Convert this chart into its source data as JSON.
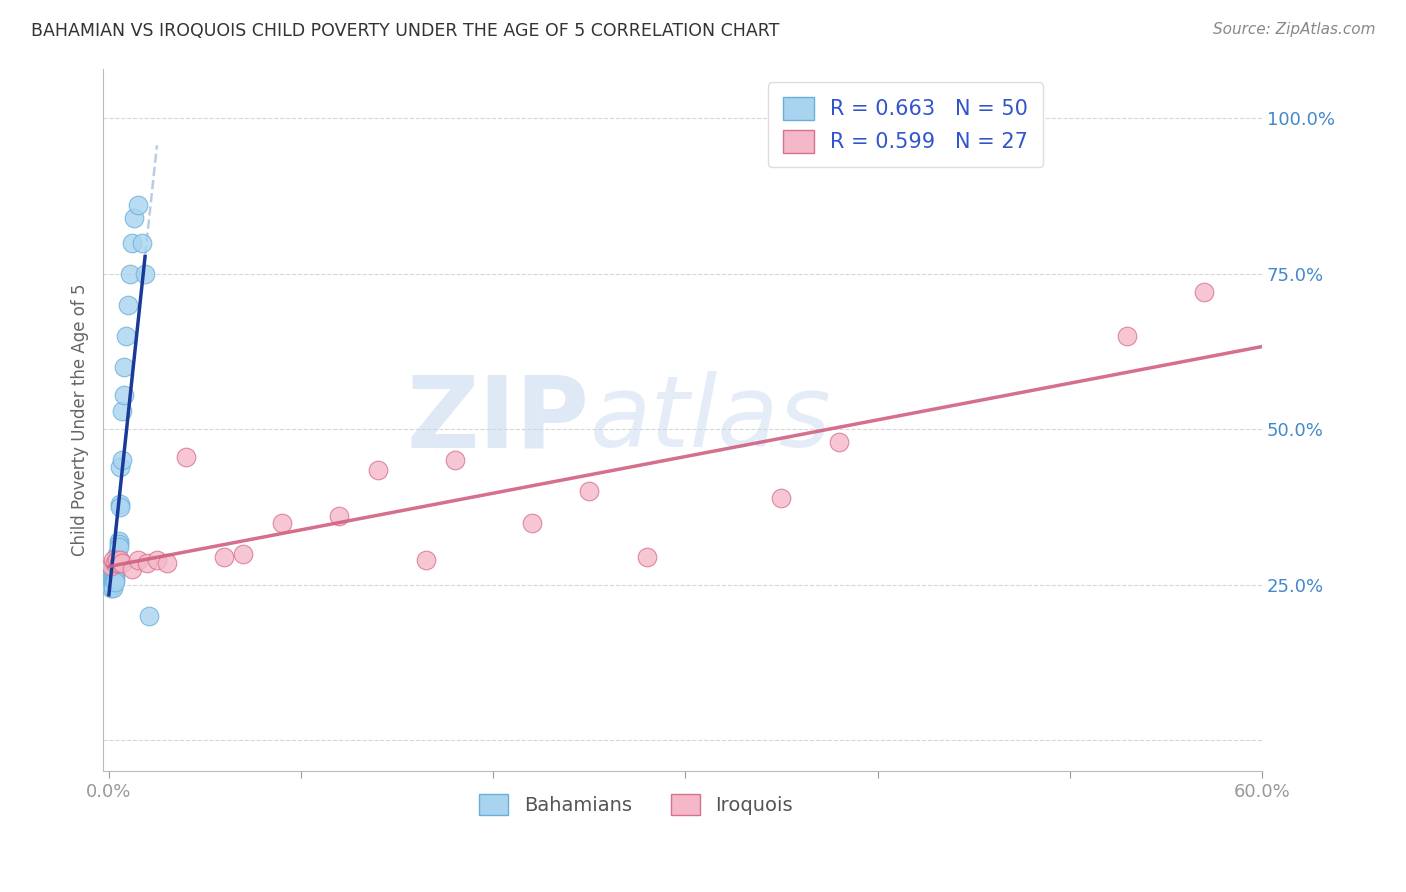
{
  "title": "BAHAMIAN VS IROQUOIS CHILD POVERTY UNDER THE AGE OF 5 CORRELATION CHART",
  "source": "Source: ZipAtlas.com",
  "ylabel": "Child Poverty Under the Age of 5",
  "watermark_zip": "ZIP",
  "watermark_atlas": "atlas",
  "bahamian_color": "#a8d4f0",
  "bahamian_edge_color": "#6aafd8",
  "iroquois_color": "#f4b8c8",
  "iroquois_edge_color": "#d87090",
  "bahamian_line_color": "#1a3a9a",
  "iroquois_line_color": "#d06080",
  "bahamian_dashed_color": "#b0c8e0",
  "legend_text_color": "#3355cc",
  "title_color": "#333333",
  "background_color": "#ffffff",
  "grid_color": "#cccccc",
  "right_axis_color": "#4488cc",
  "bahamian_R": 0.663,
  "bahamian_N": 50,
  "iroquois_R": 0.599,
  "iroquois_N": 27,
  "xlim": [
    -0.003,
    0.6
  ],
  "ylim": [
    -0.05,
    1.08
  ],
  "ytick_values": [
    0.0,
    0.25,
    0.5,
    0.75,
    1.0
  ],
  "ytick_labels_right": [
    "",
    "25.0%",
    "50.0%",
    "75.0%",
    "100.0%"
  ],
  "xtick_positions": [
    0.0,
    0.1,
    0.2,
    0.3,
    0.4,
    0.5,
    0.6
  ],
  "bah_x": [
    0.0,
    0.0,
    0.0,
    0.0,
    0.0,
    0.001,
    0.001,
    0.001,
    0.001,
    0.001,
    0.001,
    0.001,
    0.002,
    0.002,
    0.002,
    0.002,
    0.002,
    0.002,
    0.002,
    0.002,
    0.003,
    0.003,
    0.003,
    0.003,
    0.003,
    0.003,
    0.003,
    0.004,
    0.004,
    0.004,
    0.004,
    0.005,
    0.005,
    0.005,
    0.006,
    0.006,
    0.006,
    0.007,
    0.007,
    0.008,
    0.008,
    0.009,
    0.01,
    0.011,
    0.012,
    0.013,
    0.015,
    0.017,
    0.019,
    0.021
  ],
  "bah_y": [
    0.27,
    0.27,
    0.265,
    0.265,
    0.26,
    0.27,
    0.265,
    0.265,
    0.26,
    0.255,
    0.25,
    0.245,
    0.28,
    0.275,
    0.27,
    0.265,
    0.26,
    0.255,
    0.25,
    0.245,
    0.285,
    0.28,
    0.275,
    0.27,
    0.265,
    0.26,
    0.255,
    0.3,
    0.295,
    0.29,
    0.285,
    0.32,
    0.315,
    0.31,
    0.38,
    0.375,
    0.44,
    0.45,
    0.53,
    0.555,
    0.6,
    0.65,
    0.7,
    0.75,
    0.8,
    0.84,
    0.86,
    0.8,
    0.75,
    0.2
  ],
  "iro_x": [
    0.001,
    0.002,
    0.003,
    0.004,
    0.005,
    0.006,
    0.007,
    0.012,
    0.015,
    0.02,
    0.025,
    0.03,
    0.04,
    0.06,
    0.07,
    0.09,
    0.12,
    0.14,
    0.165,
    0.18,
    0.22,
    0.25,
    0.28,
    0.35,
    0.38,
    0.53,
    0.57
  ],
  "iro_y": [
    0.28,
    0.29,
    0.285,
    0.29,
    0.285,
    0.29,
    0.285,
    0.275,
    0.29,
    0.285,
    0.29,
    0.285,
    0.455,
    0.295,
    0.3,
    0.35,
    0.36,
    0.435,
    0.29,
    0.45,
    0.35,
    0.4,
    0.295,
    0.39,
    0.48,
    0.65,
    0.72
  ]
}
